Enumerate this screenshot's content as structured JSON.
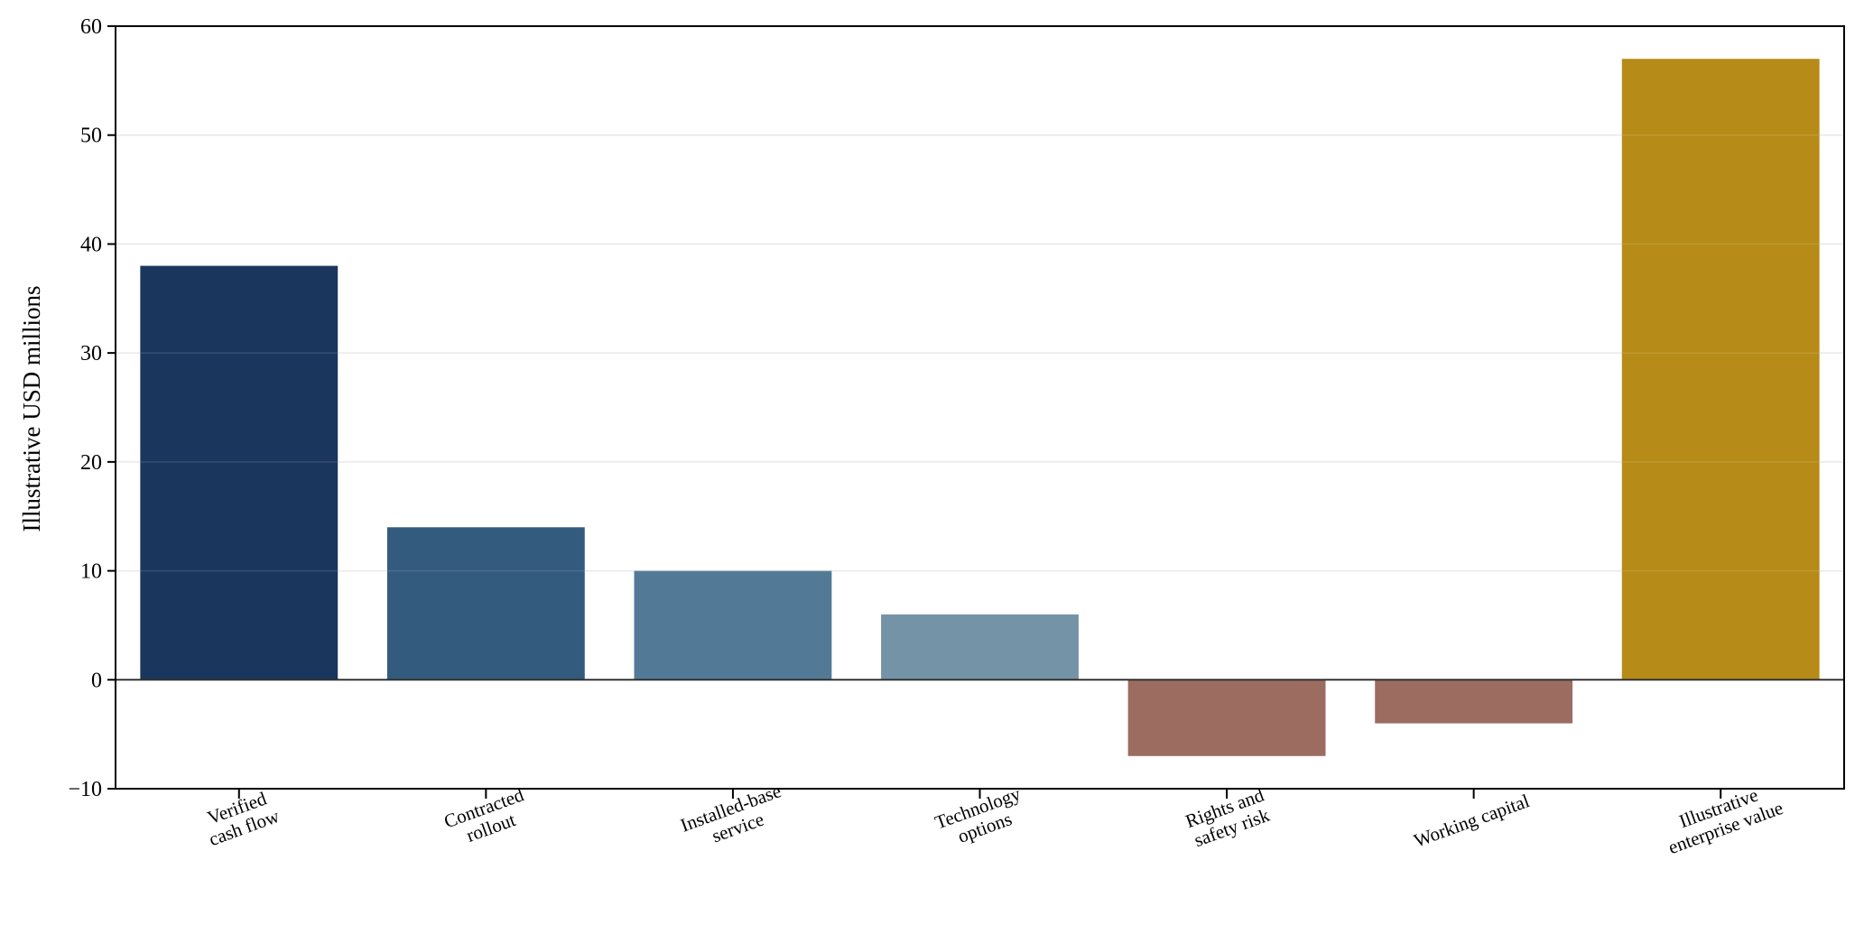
{
  "chart_data": {
    "type": "bar",
    "title": "",
    "xlabel": "",
    "ylabel": "Illustrative USD millions",
    "ylim": [
      -10,
      60
    ],
    "yticks": [
      -10,
      0,
      10,
      20,
      30,
      40,
      50,
      60
    ],
    "ytick_labels": [
      "−10",
      "0",
      "10",
      "20",
      "30",
      "40",
      "50",
      "60"
    ],
    "grid": "horizontal, light",
    "legend": "none",
    "categories": [
      "Verified cash flow",
      "Contracted rollout",
      "Installed-base service",
      "Technology options",
      "Rights and safety risk",
      "Working capital",
      "Illustrative enterprise value"
    ],
    "category_label_lines": [
      [
        "Verified",
        "cash flow"
      ],
      [
        "Contracted",
        "rollout"
      ],
      [
        "Installed-base",
        "service"
      ],
      [
        "Technology",
        "options"
      ],
      [
        "Rights and",
        "safety risk"
      ],
      [
        "Working capital"
      ],
      [
        "Illustrative",
        "enterprise value"
      ]
    ],
    "values": [
      38,
      14,
      10,
      6,
      -7,
      -4,
      57
    ],
    "colors": [
      "#1b365d",
      "#335b7e",
      "#527a96",
      "#7593a7",
      "#9c6c60",
      "#9c6c60",
      "#b68b17"
    ],
    "colors_meaning": {
      "positive_components": "blue shades",
      "negative_components": "#9c6c60",
      "total": "#b68b17"
    },
    "tick_label_rotation_deg": -20
  }
}
